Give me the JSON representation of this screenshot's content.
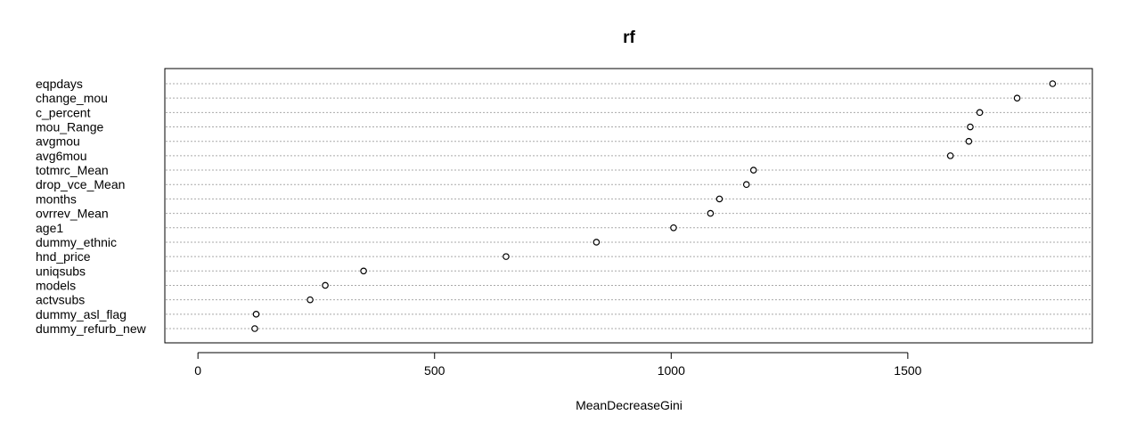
{
  "chart_data": {
    "type": "scatter",
    "title": "rf",
    "xlabel": "MeanDecreaseGini",
    "ylabel": "",
    "xlim": [
      -70,
      1890
    ],
    "xticks": [
      0,
      500,
      1000,
      1500
    ],
    "grid": "dotted horizontal guide lines per category",
    "categories": [
      "eqpdays",
      "change_mou",
      "c_percent",
      "mou_Range",
      "avgmou",
      "avg6mou",
      "totmrc_Mean",
      "drop_vce_Mean",
      "months",
      "ovrrev_Mean",
      "age1",
      "dummy_ethnic",
      "hnd_price",
      "uniqsubs",
      "models",
      "actvsubs",
      "dummy_asl_flag",
      "dummy_refurb_new"
    ],
    "values": [
      1806,
      1731,
      1652,
      1632,
      1629,
      1590,
      1174,
      1159,
      1102,
      1083,
      1005,
      842,
      651,
      350,
      269,
      237,
      123,
      120
    ]
  }
}
